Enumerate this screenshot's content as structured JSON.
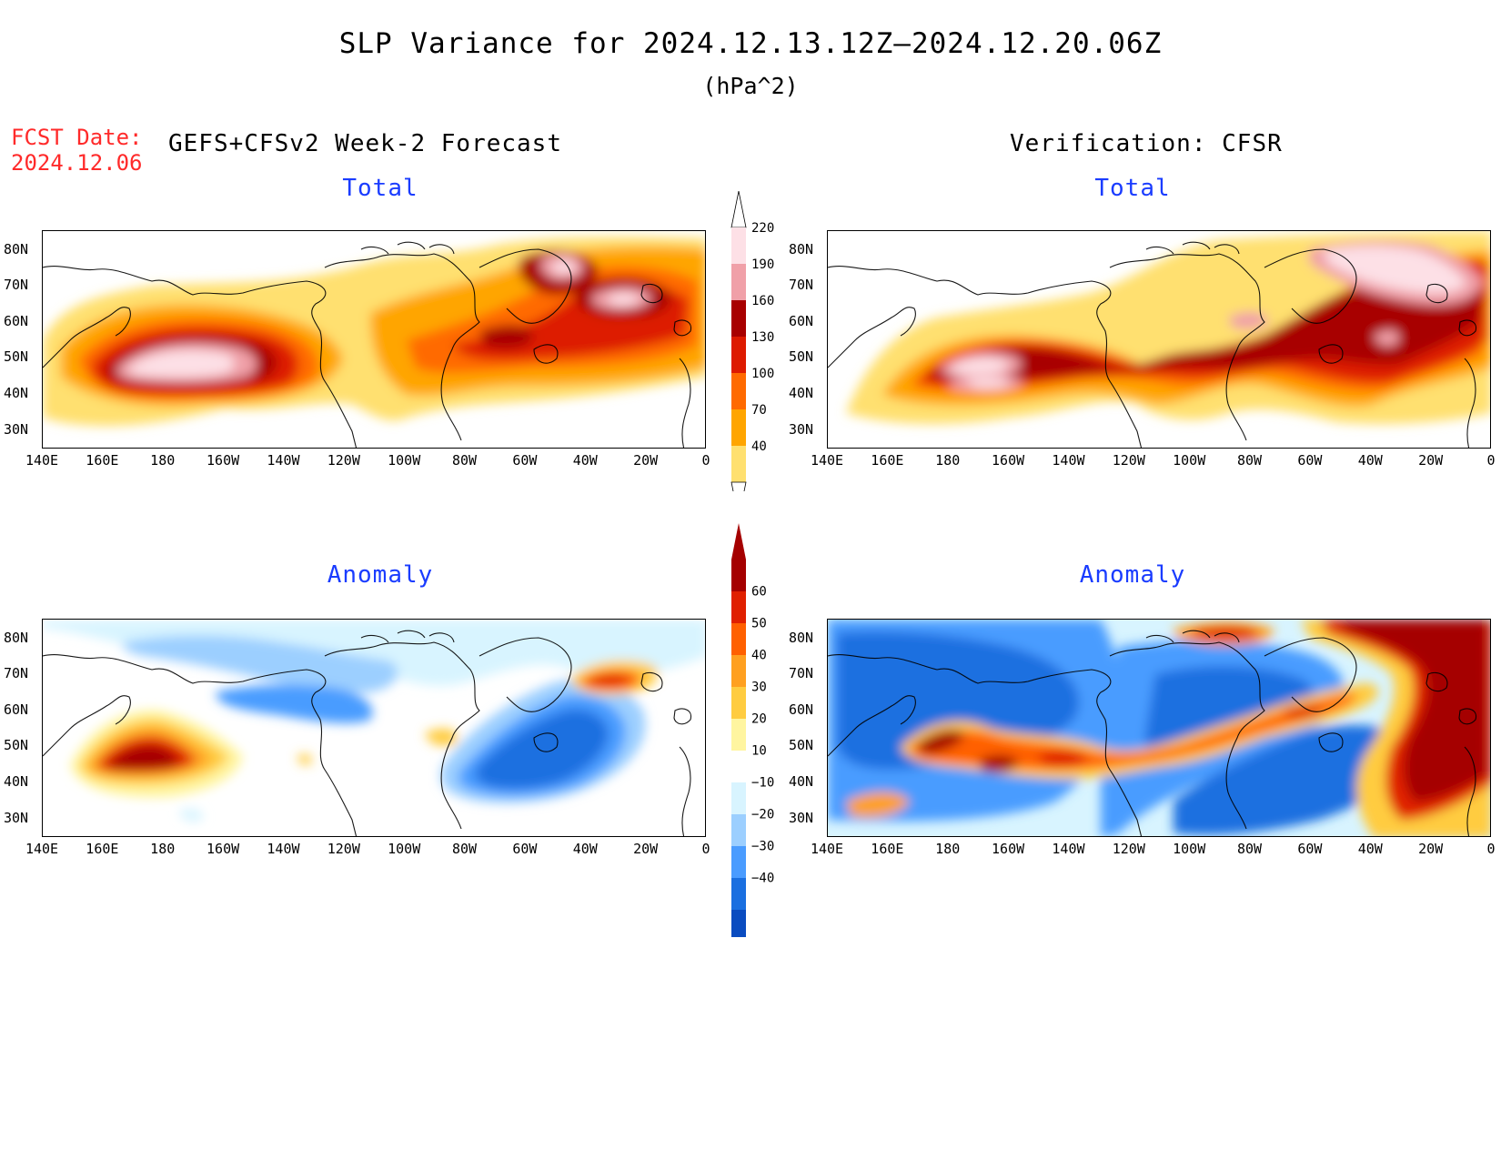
{
  "header": {
    "title": "SLP Variance for 2024.12.13.12Z–2024.12.20.06Z",
    "units": "(hPa^2)",
    "fcst_label_line1": "FCST Date:",
    "fcst_label_line2": "2024.12.06",
    "left_column_title": "GEFS+CFSv2 Week-2 Forecast",
    "right_column_title": "Verification: CFSR"
  },
  "panels": {
    "forecast_total_title": "Total",
    "verif_total_title": "Total",
    "forecast_anom_title": "Anomaly",
    "verif_anom_title": "Anomaly"
  },
  "axes": {
    "lat_labels": [
      "80N",
      "70N",
      "60N",
      "50N",
      "40N",
      "30N"
    ],
    "lon_labels": [
      "140E",
      "160E",
      "180",
      "160W",
      "140W",
      "120W",
      "100W",
      "80W",
      "60W",
      "40W",
      "20W",
      "0"
    ]
  },
  "colorbar_total": {
    "levels": [
      "220",
      "190",
      "160",
      "130",
      "100",
      "70",
      "40"
    ],
    "colors": [
      "#fde0e6",
      "#f0a0a8",
      "#a80000",
      "#dd1a00",
      "#ff6a00",
      "#ffa500",
      "#ffe070"
    ]
  },
  "colorbar_anom": {
    "levels": [
      "60",
      "50",
      "40",
      "30",
      "20",
      "10",
      "−10",
      "−20",
      "−30",
      "−40"
    ],
    "colors": [
      "#a50000",
      "#e02000",
      "#ff6000",
      "#ffa020",
      "#ffcc40",
      "#fff5a0",
      "#ffffff",
      "#d8f4ff",
      "#9ccfff",
      "#4a9cff",
      "#1a6fe0",
      "#0a4cc0"
    ]
  }
}
